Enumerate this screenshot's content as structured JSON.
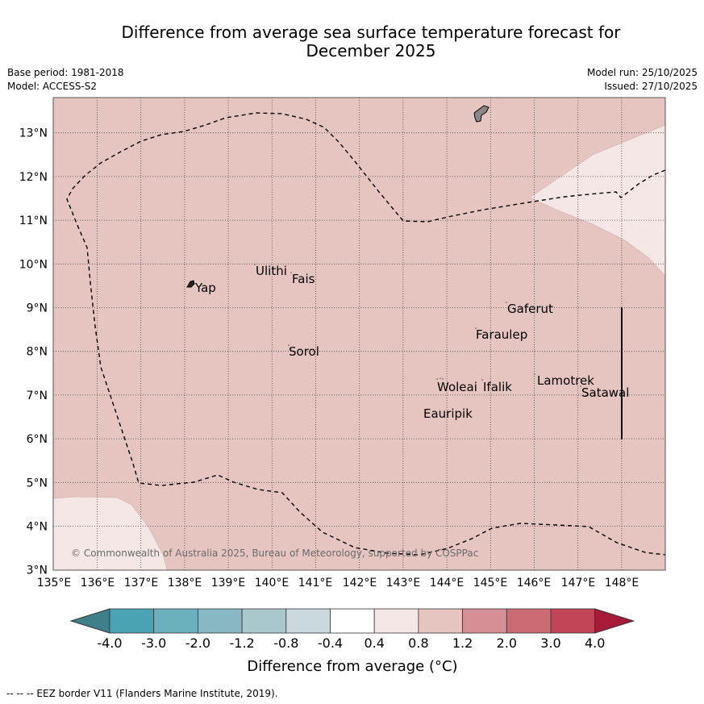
{
  "header": {
    "title_line1": "Difference from average sea surface temperature forecast for",
    "title_line2": "December 2025",
    "base_period": "Base period: 1981-2018",
    "model": "Model: ACCESS-S2",
    "model_run": "Model run: 25/10/2025",
    "issued": "Issued: 27/10/2025"
  },
  "map": {
    "lat_ticks": [
      "13°N",
      "12°N",
      "11°N",
      "10°N",
      "9°N",
      "8°N",
      "7°N",
      "6°N",
      "5°N",
      "4°N",
      "3°N"
    ],
    "lon_ticks": [
      "135°E",
      "136°E",
      "137°E",
      "138°E",
      "139°E",
      "140°E",
      "141°E",
      "142°E",
      "143°E",
      "144°E",
      "145°E",
      "146°E",
      "147°E",
      "148°E"
    ],
    "places": {
      "yap": "Yap",
      "ulithi": "Ulithi",
      "fais": "Fais",
      "gaferut": "Gaferut",
      "faraulep": "Faraulep",
      "sorol": "Sorol",
      "woleai": "Woleai",
      "ifalik": "Ifalik",
      "lamotrek": "Lamotrek",
      "satawal": "Satawal",
      "eauripik": "Eauripik"
    },
    "copyright": "© Commonwealth of Australia 2025, Bureau of Meteorology, supported by COSPPac",
    "colors": {
      "band_0.8_1.2": "#e6c5c1",
      "band_0.4_0.8": "#f4e7e5",
      "eez_border": "#000000"
    }
  },
  "colorbar": {
    "labels": [
      "-4.0",
      "-3.0",
      "-2.0",
      "-1.2",
      "-0.8",
      "-0.4",
      "0.4",
      "0.8",
      "1.2",
      "2.0",
      "3.0",
      "4.0"
    ],
    "colors": [
      "#3e7f8a",
      "#4aa3b2",
      "#6bb1bd",
      "#88b8c3",
      "#a9c8ce",
      "#c9d9dc",
      "#ffffff",
      "#f4e7e5",
      "#e6c5c1",
      "#d68f94",
      "#cd6b74",
      "#c14556",
      "#a81c3a"
    ],
    "title": "Difference from average (°C)"
  },
  "footnote": "-- -- -- EEZ border V11 (Flanders Marine Institute, 2019)."
}
